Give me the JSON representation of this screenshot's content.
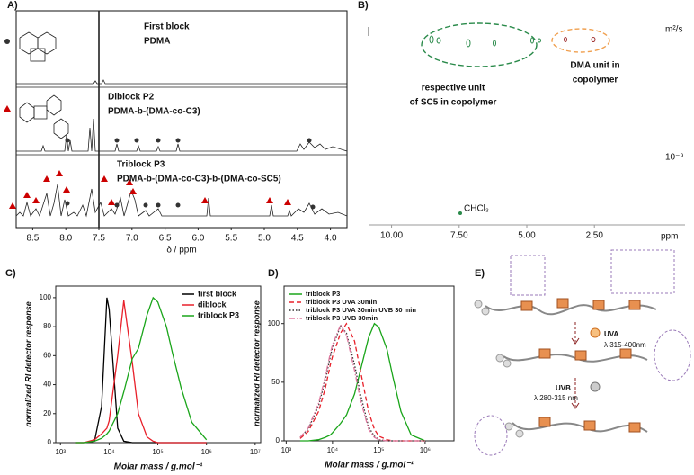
{
  "panels": {
    "a": "A)",
    "b": "B)",
    "c": "C)",
    "d": "D)",
    "e": "E)"
  },
  "panel_a": {
    "labels": {
      "first_block": "First block",
      "first_polymer": "PDMA",
      "diblock": "Diblock P2",
      "diblock_polymer": "PDMA-b-(DMA-co-C3)",
      "triblock": "Triblock P3",
      "triblock_polymer": "PDMA-b-(DMA-co-C3)-b-(DMA-co-SC5)"
    },
    "x_label": "δ / ppm",
    "xlim": [
      8.75,
      3.75
    ],
    "xticks": [
      8.5,
      {
        "value": 8,
        "label": "8.0"
      },
      7.5,
      {
        "value": 7,
        "label": "7.0"
      },
      6.5,
      {
        "value": 6,
        "label": "6.0"
      },
      5.5,
      {
        "value": 5,
        "label": "5.0"
      },
      4.5,
      {
        "value": 4,
        "label": "4.0"
      }
    ]
  },
  "panel_b": {
    "annotations": {
      "sc5": [
        "respective unit",
        "of SC5 in copolymer"
      ],
      "dma": [
        "DMA unit in",
        "copolymer"
      ],
      "solvent": "CHCl₃"
    },
    "x_label": "ppm",
    "y_unit": "m²/s",
    "y_label": "10⁻⁹",
    "xlim": [
      10.85,
      -0.85
    ],
    "xticks": [
      {
        "value": 10,
        "label": "10.00"
      },
      {
        "value": 7.5,
        "label": "7.50"
      },
      {
        "value": 5,
        "label": "5.00"
      },
      {
        "value": 2.5,
        "label": "2.50"
      }
    ]
  },
  "panel_e": {
    "uva": "UVA",
    "uva_range": "λ 315-400nm",
    "uvb": "UVB",
    "uvb_range": "λ 280-315 nm"
  },
  "chart_data": [
    {
      "type": "line",
      "x_label": "Molar mass / g.mol⁻¹",
      "y_label": "normalized RI detector response",
      "xlog": true,
      "xlim": [
        800,
        13000000
      ],
      "ylim": [
        0,
        108
      ],
      "xticks": [
        {
          "value": 1000,
          "label": "10³"
        },
        {
          "value": 10000,
          "label": "10⁴"
        },
        {
          "value": 100000,
          "label": "10⁵"
        },
        {
          "value": 1000000,
          "label": "10⁶"
        },
        {
          "value": 10000000,
          "label": "10⁷"
        }
      ],
      "yticks": [
        0,
        20,
        40,
        60,
        80,
        100
      ],
      "legend": "upper right",
      "x": [
        2000,
        3000,
        5000,
        7000,
        9000,
        10000,
        15000,
        20000,
        30000,
        40000,
        60000,
        80000,
        100000,
        150000,
        200000,
        300000,
        500000,
        1000000
      ],
      "series": [
        {
          "name": "first block",
          "color": "#000000",
          "dash": "solid",
          "values": [
            0,
            0,
            1,
            25,
            100,
            92,
            10,
            1,
            0,
            0,
            0,
            0,
            0,
            0,
            0,
            0,
            0,
            0
          ]
        },
        {
          "name": "diblock",
          "color": "#e8202a",
          "dash": "solid",
          "values": [
            0,
            0,
            2,
            6,
            10,
            15,
            60,
            98,
            55,
            20,
            4,
            1,
            0,
            0,
            0,
            0,
            0,
            0
          ]
        },
        {
          "name": "triblock P3",
          "color": "#1aa51a",
          "dash": "solid",
          "values": [
            0,
            0,
            1,
            3,
            6,
            8,
            20,
            35,
            58,
            65,
            88,
            100,
            97,
            80,
            62,
            38,
            14,
            2
          ]
        }
      ]
    },
    {
      "type": "line",
      "x_label": "Molar mass / g.mol⁻¹",
      "y_label": "normalized RI detector response",
      "xlog": true,
      "xlim": [
        900,
        4200000
      ],
      "ylim": [
        0,
        132
      ],
      "xticks": [
        {
          "value": 1000,
          "label": "10³"
        },
        {
          "value": 10000,
          "label": "10⁴"
        },
        {
          "value": 100000,
          "label": "10⁵"
        },
        {
          "value": 1000000,
          "label": "10⁶"
        }
      ],
      "yticks": [
        0,
        50,
        100
      ],
      "legend": "upper left",
      "x": [
        2000,
        3000,
        5000,
        7000,
        9000,
        10000,
        15000,
        20000,
        30000,
        40000,
        60000,
        80000,
        100000,
        150000,
        200000,
        300000,
        500000,
        1000000
      ],
      "series": [
        {
          "name": "triblock P3",
          "color": "#1aa51a",
          "dash": "solid",
          "values": [
            0,
            0,
            1,
            3,
            5,
            7,
            15,
            22,
            40,
            60,
            88,
            100,
            97,
            78,
            55,
            25,
            5,
            0
          ]
        },
        {
          "name": "triblock P3 UVA 30min",
          "color": "#e8202a",
          "dash": "dashed",
          "values": [
            2,
            8,
            25,
            45,
            65,
            72,
            92,
            100,
            85,
            60,
            25,
            10,
            4,
            1,
            0,
            0,
            0,
            0
          ]
        },
        {
          "name": "triblock P3 UVA 30min UVB 30 min",
          "color": "#333333",
          "dash": "dotted",
          "values": [
            3,
            10,
            30,
            52,
            72,
            80,
            98,
            92,
            65,
            40,
            12,
            4,
            1,
            0,
            0,
            0,
            0,
            0
          ]
        },
        {
          "name": "triblock P3 UVB 30min",
          "color": "#e07aa0",
          "dash": "dashdot",
          "values": [
            3,
            11,
            32,
            55,
            75,
            82,
            99,
            90,
            60,
            35,
            10,
            3,
            1,
            0,
            0,
            0,
            0,
            0
          ]
        }
      ]
    }
  ]
}
